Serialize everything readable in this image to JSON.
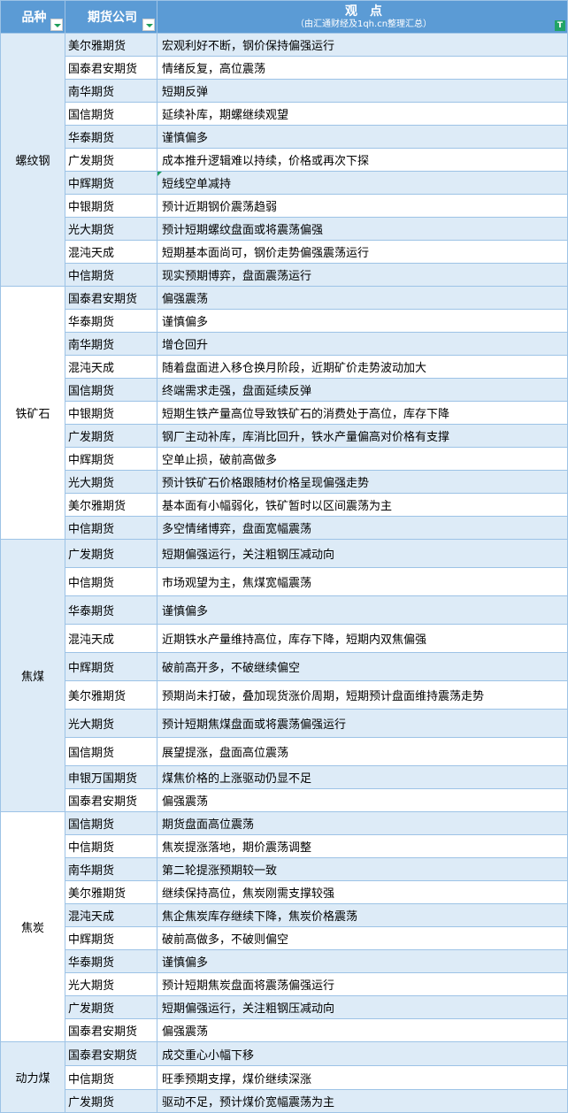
{
  "header": {
    "col_variety": "品种",
    "col_company": "期货公司",
    "col_view": "观　点",
    "col_view_sub": "（由汇通财经及1qh.cn整理汇总）",
    "filter_icon": "filter-icon"
  },
  "colors": {
    "header": "#5b9bd5",
    "band": "#ddebf7",
    "border": "#9dc3e6"
  },
  "groups": [
    {
      "name": "螺纹钢",
      "rows": [
        [
          "美尔雅期货",
          "宏观利好不断，钢价保持偏强运行"
        ],
        [
          "国泰君安期货",
          "情绪反复，高位震荡"
        ],
        [
          "南华期货",
          "短期反弹"
        ],
        [
          "国信期货",
          "延续补库，期螺继续观望"
        ],
        [
          "华泰期货",
          "谨慎偏多"
        ],
        [
          "广发期货",
          "成本推升逻辑难以持续，价格或再次下探"
        ],
        [
          "中辉期货",
          "短线空单减持"
        ],
        [
          "中银期货",
          "预计近期钢价震荡趋弱"
        ],
        [
          "光大期货",
          "预计短期螺纹盘面或将震荡偏强"
        ],
        [
          "混沌天成",
          "短期基本面尚可，钢价走势偏强震荡运行"
        ],
        [
          "中信期货",
          "现实预期博弈，盘面震荡运行"
        ]
      ]
    },
    {
      "name": "铁矿石",
      "rows": [
        [
          "国泰君安期货",
          "偏强震荡"
        ],
        [
          "华泰期货",
          "谨慎偏多"
        ],
        [
          "南华期货",
          "增仓回升"
        ],
        [
          "混沌天成",
          "随着盘面进入移仓换月阶段，近期矿价走势波动加大"
        ],
        [
          "国信期货",
          "终端需求走强，盘面延续反弹"
        ],
        [
          "中银期货",
          "短期生铁产量高位导致铁矿石的消费处于高位，库存下降"
        ],
        [
          "广发期货",
          "钢厂主动补库，库消比回升，铁水产量偏高对价格有支撑"
        ],
        [
          "中辉期货",
          "空单止损，破前高做多"
        ],
        [
          "光大期货",
          "预计铁矿石价格跟随材价格呈现偏强走势"
        ],
        [
          "美尔雅期货",
          "基本面有小幅弱化，铁矿暂时以区间震荡为主"
        ],
        [
          "中信期货",
          "多空情绪博弈，盘面宽幅震荡"
        ]
      ]
    },
    {
      "name": "焦煤",
      "rows": [
        [
          "广发期货",
          "短期偏强运行，关注粗钢压减动向"
        ],
        [
          "中信期货",
          "市场观望为主，焦煤宽幅震荡"
        ],
        [
          "华泰期货",
          "谨慎偏多"
        ],
        [
          "混沌天成",
          "近期铁水产量维持高位，库存下降，短期内双焦偏强"
        ],
        [
          "中辉期货",
          "破前高开多，不破继续偏空"
        ],
        [
          "美尔雅期货",
          "预期尚未打破，叠加现货涨价周期，短期预计盘面维持震荡走势"
        ],
        [
          "光大期货",
          "预计短期焦煤盘面或将震荡偏强运行"
        ],
        [
          "国信期货",
          "展望提涨，盘面高位震荡"
        ],
        [
          "申银万国期货",
          "煤焦价格的上涨驱动仍显不足"
        ],
        [
          "国泰君安期货",
          "偏强震荡"
        ]
      ]
    },
    {
      "name": "焦炭",
      "rows": [
        [
          "国信期货",
          "期货盘面高位震荡"
        ],
        [
          "中信期货",
          "焦炭提涨落地，期价震荡调整"
        ],
        [
          "南华期货",
          "第二轮提涨预期较一致"
        ],
        [
          "美尔雅期货",
          "继续保持高位，焦炭刚需支撑较强"
        ],
        [
          "混沌天成",
          "焦企焦炭库存继续下降，焦炭价格震荡"
        ],
        [
          "中辉期货",
          "破前高做多，不破则偏空"
        ],
        [
          "华泰期货",
          "谨慎偏多"
        ],
        [
          "光大期货",
          "预计短期焦炭盘面将震荡偏强运行"
        ],
        [
          "广发期货",
          "短期偏强运行，关注粗钢压减动向"
        ],
        [
          "国泰君安期货",
          "偏强震荡"
        ]
      ]
    },
    {
      "name": "动力煤",
      "rows": [
        [
          "国泰君安期货",
          "成交重心小幅下移"
        ],
        [
          "中信期货",
          "旺季预期支撑，煤价继续深涨"
        ],
        [
          "广发期货",
          "驱动不足，预计煤价宽幅震荡为主"
        ]
      ]
    }
  ]
}
